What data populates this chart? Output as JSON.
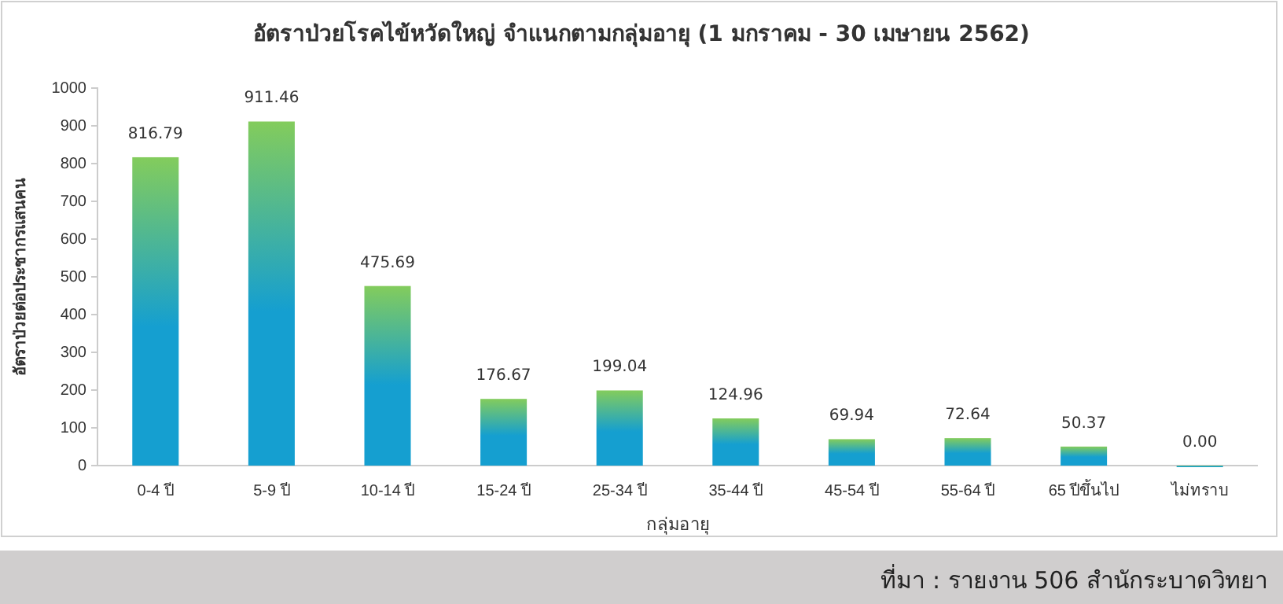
{
  "chart_data": {
    "type": "bar",
    "title": "อัตราป่วยโรคไข้หวัดใหญ่ จำแนกตามกลุ่มอายุ  (1 มกราคม - 30 เมษายน 2562)",
    "xlabel": "กลุ่มอายุ",
    "ylabel": "อัตราป่วยต่อประชากรแสนคน",
    "categories": [
      "0-4 ปี",
      "5-9 ปี",
      "10-14 ปี",
      "15-24 ปี",
      "25-34 ปี",
      "35-44 ปี",
      "45-54 ปี",
      "55-64 ปี",
      "65 ปีขึ้นไป",
      "ไม่ทราบ"
    ],
    "values": [
      816.79,
      911.46,
      475.69,
      176.67,
      199.04,
      124.96,
      69.94,
      72.64,
      50.37,
      0.0
    ],
    "value_labels": [
      "816.79",
      "911.46",
      "475.69",
      "176.67",
      "199.04",
      "124.96",
      "69.94",
      "72.64",
      "50.37",
      "0.00"
    ],
    "color": "#159fd0",
    "ylim": [
      0,
      1000
    ],
    "yticks": [
      0,
      100,
      200,
      300,
      400,
      500,
      600,
      700,
      800,
      900,
      1000
    ],
    "grid": false,
    "annotations": [
      "ที่มา : รายงาน 506 สำนักระบาดวิทยา"
    ]
  }
}
